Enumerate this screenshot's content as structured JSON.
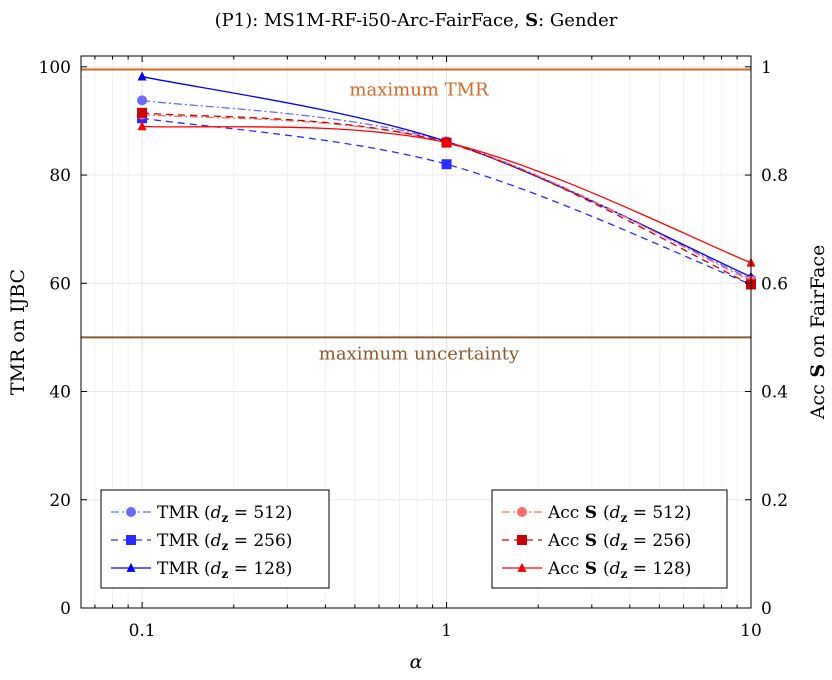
{
  "chart_data": {
    "type": "line",
    "title": "(P1):  MS1M-RF-i50-Arc-FairFace,  S: Gender",
    "xlabel": "α",
    "ylabel": "TMR on IJBC",
    "y2label": "Acc S on FairFace",
    "xscale": "log",
    "x": [
      0.1,
      1,
      10
    ],
    "x_ticks": [
      "0.1",
      "1",
      "10"
    ],
    "xlim": [
      0.063,
      10
    ],
    "ylim": [
      0,
      102
    ],
    "y_ticks": [
      "0",
      "20",
      "40",
      "60",
      "80",
      "100"
    ],
    "y2lim": [
      0,
      1.02
    ],
    "y2_ticks": [
      "0",
      "0.2",
      "0.4",
      "0.6",
      "0.8",
      "1"
    ],
    "grid": true,
    "reference_lines": [
      {
        "label": "maximum TMR",
        "value": 99.5,
        "color": "#d2691e"
      },
      {
        "label": "maximum uncertainty",
        "value": 50,
        "color": "#8b5a2b"
      }
    ],
    "series": [
      {
        "name": "TMR (d_z = 512)",
        "axis": "left",
        "values": [
          93.8,
          86.2,
          60.8
        ],
        "color": "#6b6bff",
        "dash": "dashdot",
        "marker": "circle"
      },
      {
        "name": "TMR (d_z = 256)",
        "axis": "left",
        "values": [
          90.5,
          82.0,
          59.8
        ],
        "color": "#2b2bff",
        "dash": "dashed",
        "marker": "square"
      },
      {
        "name": "TMR (d_z = 128)",
        "axis": "left",
        "values": [
          98.2,
          86.2,
          61.2
        ],
        "color": "#0000ff",
        "dash": "solid",
        "marker": "triangle"
      },
      {
        "name": "Acc S (d_z = 512)",
        "axis": "right",
        "values": [
          0.912,
          0.86,
          0.605
        ],
        "color": "#ff6b6b",
        "dash": "dashdot",
        "marker": "circle"
      },
      {
        "name": "Acc S (d_z = 256)",
        "axis": "right",
        "values": [
          0.915,
          0.86,
          0.598
        ],
        "color": "#cc0000",
        "dash": "dashed",
        "marker": "square"
      },
      {
        "name": "Acc S (d_z = 128)",
        "axis": "right",
        "values": [
          0.89,
          0.86,
          0.638
        ],
        "color": "#ff0000",
        "dash": "solid",
        "marker": "triangle"
      }
    ],
    "legends": [
      {
        "position": "bottom-left",
        "entries": [
          {
            "prefix": "TMR",
            "bold": "",
            "sub": "512"
          },
          {
            "prefix": "TMR",
            "bold": "",
            "sub": "256"
          },
          {
            "prefix": "TMR",
            "bold": "",
            "sub": "128"
          }
        ]
      },
      {
        "position": "bottom-right",
        "entries": [
          {
            "prefix": "Acc",
            "bold": "S",
            "sub": "512"
          },
          {
            "prefix": "Acc",
            "bold": "S",
            "sub": "256"
          },
          {
            "prefix": "Acc",
            "bold": "S",
            "sub": "128"
          }
        ]
      }
    ]
  }
}
